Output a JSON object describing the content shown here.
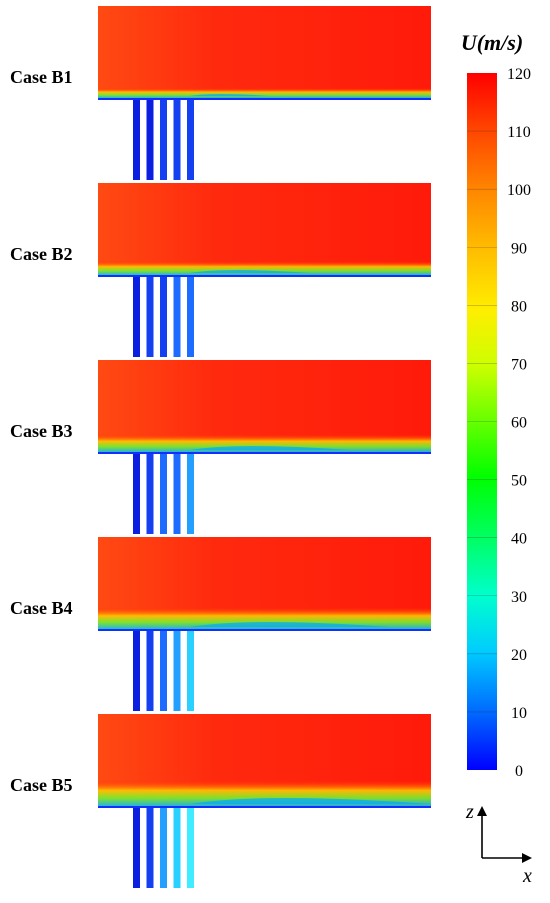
{
  "cases": [
    {
      "label": "Case B1",
      "blowing_level": 1
    },
    {
      "label": "Case B2",
      "blowing_level": 2
    },
    {
      "label": "Case B3",
      "blowing_level": 3
    },
    {
      "label": "Case B4",
      "blowing_level": 4
    },
    {
      "label": "Case B5",
      "blowing_level": 5
    }
  ],
  "colorbar": {
    "title": "U(m/s)",
    "ticks": [
      "120",
      "110",
      "100",
      "90",
      "80",
      "70",
      "60",
      "50",
      "40",
      "30",
      "20",
      "10",
      "0"
    ],
    "colors": [
      "#0000ff",
      "#0066ff",
      "#00ccff",
      "#00ffcc",
      "#00ff66",
      "#00ff00",
      "#66ff00",
      "#ccff00",
      "#ffee00",
      "#ffbb00",
      "#ff8800",
      "#ff4400",
      "#ff0000"
    ]
  },
  "axes": {
    "vertical": "z",
    "horizontal": "x"
  },
  "colors": {
    "main_flow": "#ff2a10",
    "slow_flow": "#0a1fe0"
  }
}
